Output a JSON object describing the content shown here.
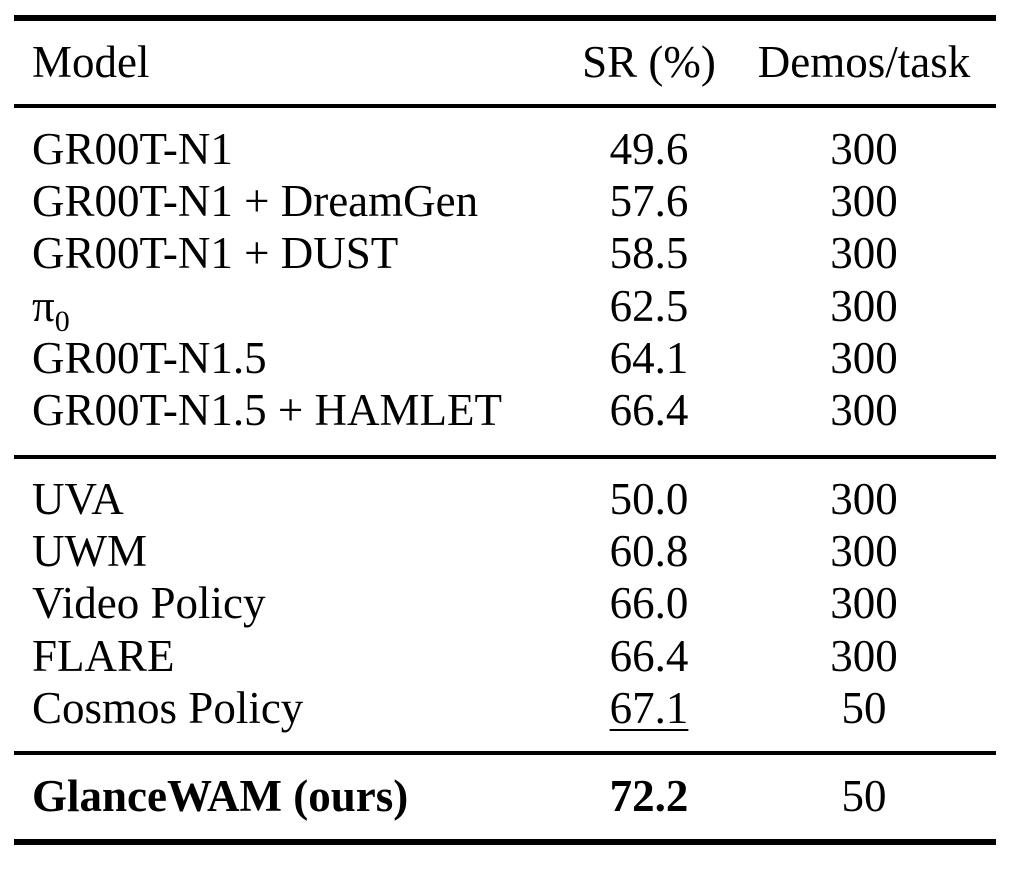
{
  "header": {
    "model": "Model",
    "sr": "SR (%)",
    "demos": "Demos/task"
  },
  "group1": [
    {
      "model": "GR00T-N1",
      "sr": "49.6",
      "demos": "300"
    },
    {
      "model": "GR00T-N1 + DreamGen",
      "sr": "57.6",
      "demos": "300"
    },
    {
      "model": "GR00T-N1 + DUST",
      "sr": "58.5",
      "demos": "300"
    },
    {
      "model_symbol": "π",
      "model_sub": "0",
      "sr": "62.5",
      "demos": "300"
    },
    {
      "model": "GR00T-N1.5",
      "sr": "64.1",
      "demos": "300"
    },
    {
      "model": "GR00T-N1.5 + HAMLET",
      "sr": "66.4",
      "demos": "300"
    }
  ],
  "group2": [
    {
      "model": "UVA",
      "sr": "50.0",
      "demos": "300"
    },
    {
      "model": "UWM",
      "sr": "60.8",
      "demos": "300"
    },
    {
      "model": "Video Policy",
      "sr": "66.0",
      "demos": "300"
    },
    {
      "model": "FLARE",
      "sr": "66.4",
      "demos": "300"
    },
    {
      "model": "Cosmos Policy",
      "sr": "67.1",
      "demos": "50",
      "sr_underlined": true
    }
  ],
  "ours": {
    "model": "GlanceWAM (ours)",
    "sr": "72.2",
    "demos": "50",
    "bold": true
  }
}
